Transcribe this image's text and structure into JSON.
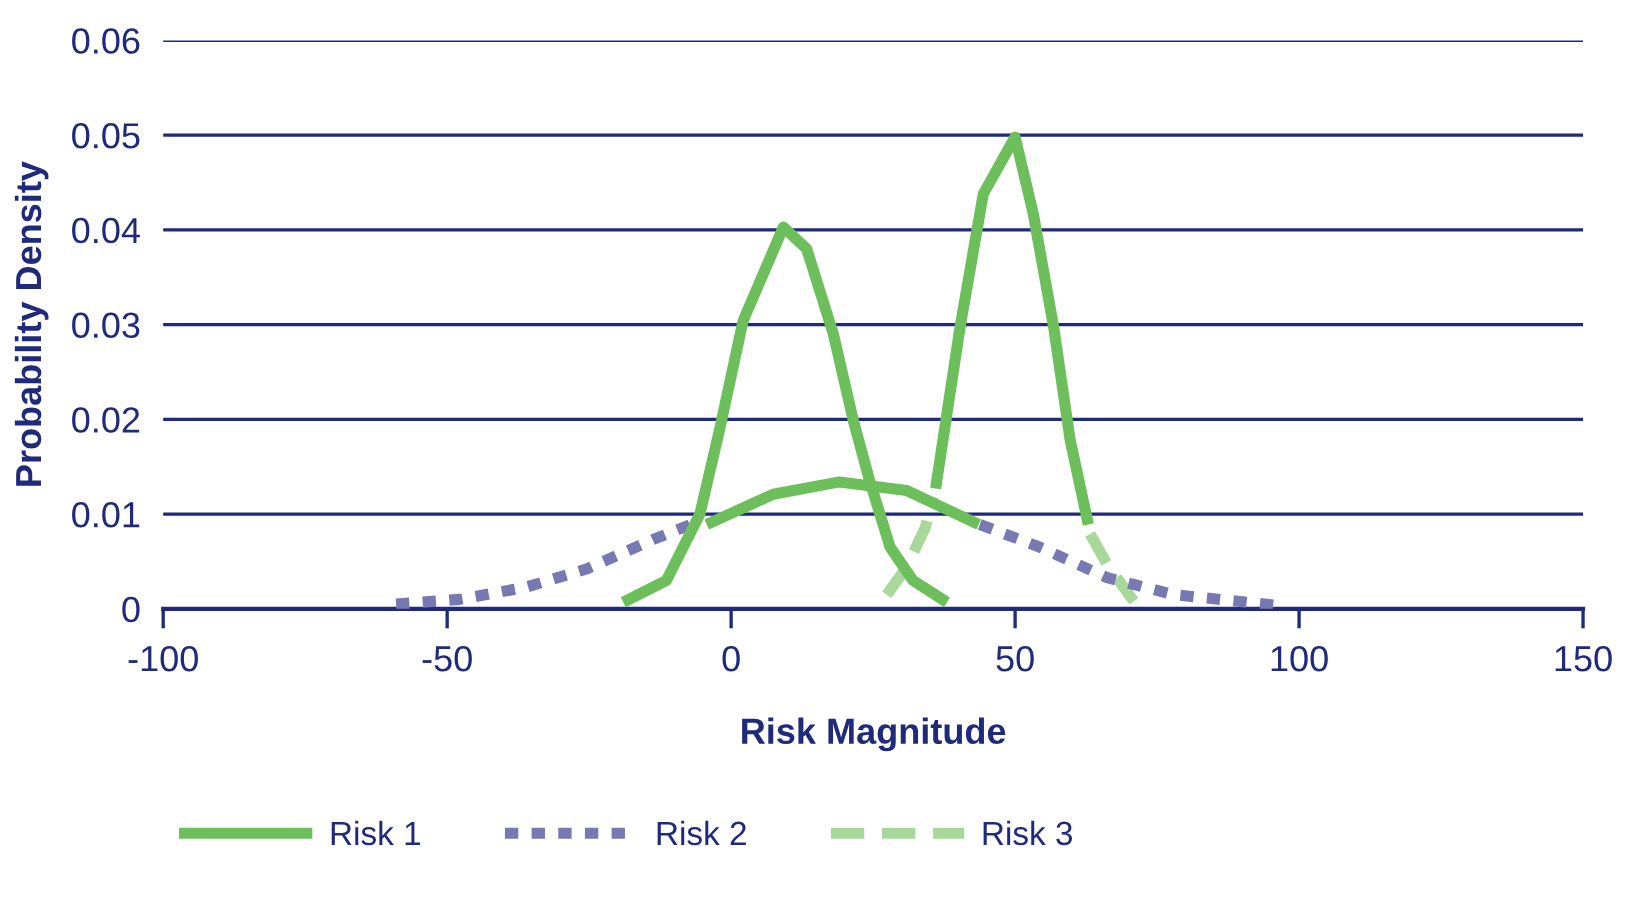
{
  "chart_data": {
    "type": "line",
    "xlabel": "Risk Magnitude",
    "ylabel": "Probability Density",
    "xlim": [
      -100,
      150
    ],
    "xticks": [
      -100,
      -50,
      0,
      50,
      100,
      150
    ],
    "ylim": [
      0,
      0.06
    ],
    "yticks": [
      0,
      0.01,
      0.02,
      0.03,
      0.04,
      0.05,
      0.06
    ],
    "grid": "y",
    "legend": "bottom",
    "series": [
      {
        "name": "Risk 1",
        "color": "#6dbf5c",
        "line_style": "solid",
        "x": [
          -19,
          -11.4,
          -5.5,
          -2,
          2.1,
          9.2,
          13.3,
          18,
          21.5,
          24.4,
          28,
          32,
          38,
          null,
          -4.3,
          7.4,
          19.1,
          30.9,
          43.6,
          null,
          36,
          40.3,
          44.4,
          50,
          53.2,
          56.8,
          59.7,
          62.9
        ],
        "values": [
          0.0007,
          0.003,
          0.01,
          0.019,
          0.0304,
          0.0403,
          0.038,
          0.029,
          0.0199,
          0.0135,
          0.0065,
          0.003,
          0.0007,
          null,
          0.0089,
          0.0121,
          0.0134,
          0.0125,
          0.0089,
          null,
          0.0127,
          0.0297,
          0.0438,
          0.0498,
          0.0417,
          0.0297,
          0.0178,
          0.0089
        ]
      },
      {
        "name": "Risk 2",
        "color": "#7878b2",
        "line_style": "dotted",
        "x": [
          -59,
          -47.8,
          -36,
          -25.5,
          -13.8,
          -5.5,
          null,
          43.8,
          54.4,
          66.2,
          77.9,
          95.6
        ],
        "values": [
          0.0005,
          0.001,
          0.0023,
          0.0042,
          0.0073,
          0.0093,
          null,
          0.0089,
          0.0065,
          0.0033,
          0.0015,
          0.0004
        ]
      },
      {
        "name": "Risk 3",
        "color": "#a8d89a",
        "line_style": "dashed",
        "x": [
          27.4,
          30.9,
          34.2,
          35.6,
          null,
          63.2,
          66.2,
          70.9
        ],
        "values": [
          0.0015,
          0.0044,
          0.0086,
          0.0118,
          null,
          0.0079,
          0.0047,
          0.0008
        ]
      }
    ]
  }
}
